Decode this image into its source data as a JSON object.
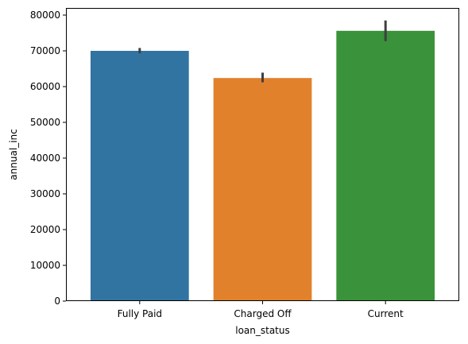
{
  "chart_data": {
    "type": "bar",
    "title": "",
    "xlabel": "loan_status",
    "ylabel": "annual_inc",
    "categories": [
      "Fully Paid",
      "Charged Off",
      "Current"
    ],
    "values": [
      70000,
      62400,
      75600
    ],
    "error_low": [
      69300,
      61200,
      72700
    ],
    "error_high": [
      70800,
      63900,
      78500
    ],
    "colors": [
      "#3274a1",
      "#e1812c",
      "#3a923a"
    ],
    "error_color": "#3f3f3f",
    "ylim": [
      0,
      82000
    ],
    "yticks": [
      0,
      10000,
      20000,
      30000,
      40000,
      50000,
      60000,
      70000,
      80000
    ],
    "ytick_labels": [
      "0",
      "10000",
      "20000",
      "30000",
      "40000",
      "50000",
      "60000",
      "70000",
      "80000"
    ],
    "grid": false,
    "legend": "none"
  }
}
